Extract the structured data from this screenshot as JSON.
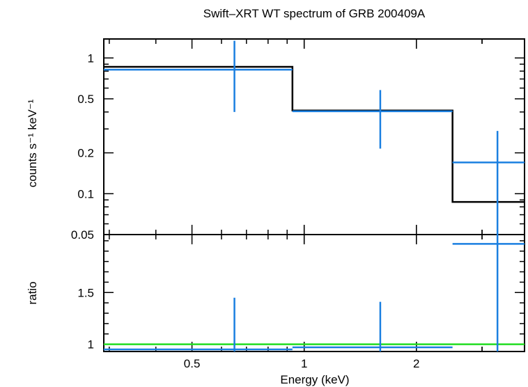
{
  "chart_data": {
    "type": "line",
    "title": "Swift–XRT WT spectrum of GRB 200409A",
    "xlabel": "Energy (keV)",
    "x_scale": "log",
    "xlim": [
      0.29,
      3.9
    ],
    "x_ticks": [
      {
        "value": 0.5,
        "label": "0.5"
      },
      {
        "value": 1,
        "label": "1"
      },
      {
        "value": 2,
        "label": "2"
      }
    ],
    "panels": [
      {
        "name": "spectrum",
        "ylabel": "counts s⁻¹ keV⁻¹",
        "y_scale": "log",
        "ylim": [
          0.05,
          1.38
        ],
        "y_ticks": [
          {
            "value": 1,
            "label": "1"
          },
          {
            "value": 0.5,
            "label": "0.5"
          },
          {
            "value": 0.2,
            "label": "0.2"
          },
          {
            "value": 0.1,
            "label": "0.1"
          },
          {
            "value": 0.05,
            "label": "0.05"
          }
        ],
        "model_step": {
          "color": "#000000",
          "edges": [
            0.29,
            0.93,
            2.5,
            3.9
          ],
          "values": [
            0.86,
            0.41,
            0.087
          ]
        },
        "data": {
          "color": "#1a7fe0",
          "points": [
            {
              "x": 0.65,
              "xlo": 0.29,
              "xhi": 0.93,
              "y": 0.82,
              "ylo": 0.4,
              "yhi": 1.34
            },
            {
              "x": 1.6,
              "xlo": 0.93,
              "xhi": 2.5,
              "y": 0.405,
              "ylo": 0.215,
              "yhi": 0.58
            },
            {
              "x": 3.3,
              "xlo": 2.5,
              "xhi": 3.9,
              "y": 0.17,
              "ylo": 0.05,
              "yhi": 0.29
            }
          ]
        }
      },
      {
        "name": "ratio",
        "ylabel": "ratio",
        "y_scale": "linear",
        "ylim": [
          0.93,
          2.06
        ],
        "y_ticks": [
          {
            "value": 1,
            "label": "1"
          },
          {
            "value": 1.5,
            "label": "1.5"
          }
        ],
        "reference_line": {
          "y": 1.0,
          "color": "#22dd22"
        },
        "data": {
          "color": "#1a7fe0",
          "points": [
            {
              "x": 0.65,
              "xlo": 0.29,
              "xhi": 0.93,
              "y": 0.95,
              "ylo": 0.93,
              "yhi": 1.45
            },
            {
              "x": 1.6,
              "xlo": 0.93,
              "xhi": 2.5,
              "y": 0.97,
              "ylo": 0.93,
              "yhi": 1.41
            },
            {
              "x": 3.3,
              "xlo": 2.5,
              "xhi": 3.9,
              "y": 1.97,
              "ylo": 0.93,
              "yhi": 2.06
            }
          ]
        }
      }
    ]
  }
}
